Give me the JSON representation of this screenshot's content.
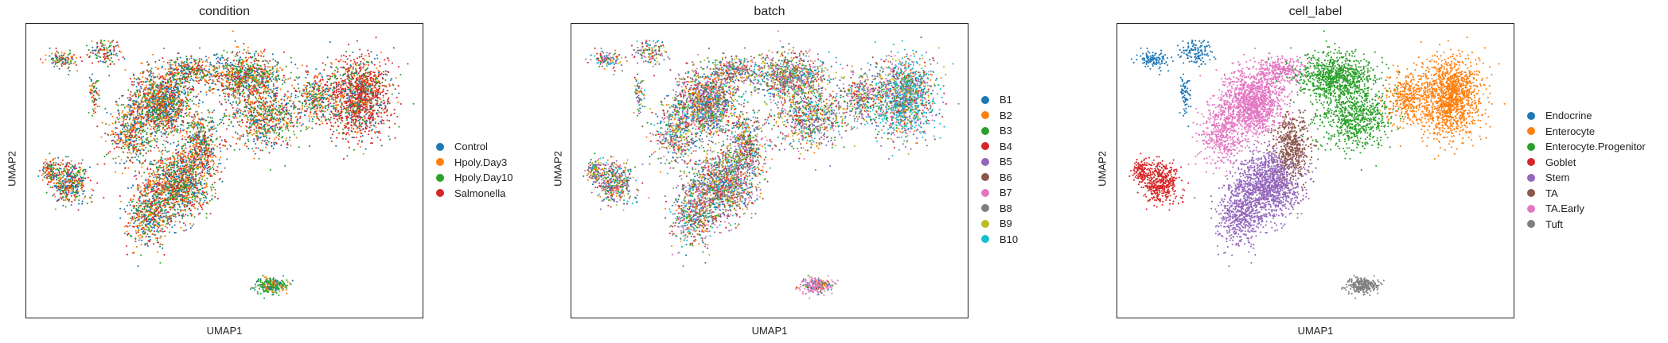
{
  "chart_data": [
    {
      "type": "scatter",
      "title": "condition",
      "xlabel": "UMAP1",
      "ylabel": "UMAP2",
      "legend_position": "right",
      "grid": false,
      "series": [
        {
          "name": "Control",
          "color": "#1f77b4"
        },
        {
          "name": "Hpoly.Day3",
          "color": "#ff7f0e"
        },
        {
          "name": "Hpoly.Day10",
          "color": "#2ca02c"
        },
        {
          "name": "Salmonella",
          "color": "#d62728"
        }
      ]
    },
    {
      "type": "scatter",
      "title": "batch",
      "xlabel": "UMAP1",
      "ylabel": "UMAP2",
      "legend_position": "right",
      "grid": false,
      "series": [
        {
          "name": "B1",
          "color": "#1f77b4"
        },
        {
          "name": "B2",
          "color": "#ff7f0e"
        },
        {
          "name": "B3",
          "color": "#2ca02c"
        },
        {
          "name": "B4",
          "color": "#d62728"
        },
        {
          "name": "B5",
          "color": "#9467bd"
        },
        {
          "name": "B6",
          "color": "#8c564b"
        },
        {
          "name": "B7",
          "color": "#e377c2"
        },
        {
          "name": "B8",
          "color": "#7f7f7f"
        },
        {
          "name": "B9",
          "color": "#bcbd22"
        },
        {
          "name": "B10",
          "color": "#17becf"
        }
      ]
    },
    {
      "type": "scatter",
      "title": "cell_label",
      "xlabel": "UMAP1",
      "ylabel": "UMAP2",
      "legend_position": "right",
      "grid": false,
      "series": [
        {
          "name": "Endocrine",
          "color": "#1f77b4"
        },
        {
          "name": "Enterocyte",
          "color": "#ff7f0e"
        },
        {
          "name": "Enterocyte.Progenitor",
          "color": "#2ca02c"
        },
        {
          "name": "Goblet",
          "color": "#d62728"
        },
        {
          "name": "Stem",
          "color": "#9467bd"
        },
        {
          "name": "TA",
          "color": "#8c564b"
        },
        {
          "name": "TA.Early",
          "color": "#e377c2"
        },
        {
          "name": "Tuft",
          "color": "#7f7f7f"
        }
      ]
    }
  ]
}
